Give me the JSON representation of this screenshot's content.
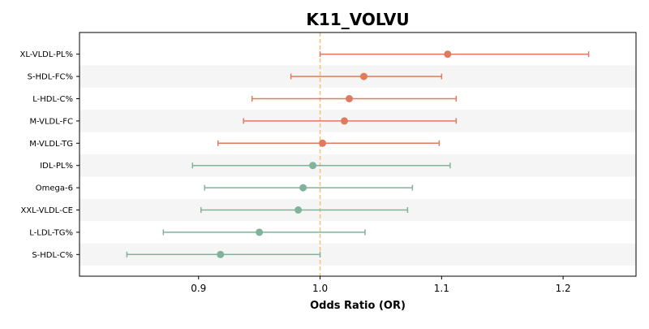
{
  "chart_data": {
    "type": "scatter",
    "subtype": "forest-plot",
    "title": "K11_VOLVU",
    "xlabel": "Odds Ratio (OR)",
    "ylabel": "",
    "xlim": [
      0.802,
      1.26
    ],
    "xticks": [
      0.9,
      1.0,
      1.1,
      1.2
    ],
    "xtick_labels": [
      "0.9",
      "1.0",
      "1.1",
      "1.2"
    ],
    "reference_line": 1.0,
    "grid": false,
    "alternating_row_bands": true,
    "colors": {
      "positive": "#e07a5f",
      "negative": "#81b29a",
      "reference_line": "#f2c078",
      "band": "#f5f5f5",
      "axis": "#000000"
    },
    "rows": [
      {
        "label": "XL-VLDL-PL%",
        "or": 1.105,
        "lower": 1.0,
        "upper": 1.221
      },
      {
        "label": "S-HDL-FC%",
        "or": 1.036,
        "lower": 0.976,
        "upper": 1.1
      },
      {
        "label": "L-HDL-C%",
        "or": 1.024,
        "lower": 0.944,
        "upper": 1.112
      },
      {
        "label": "M-VLDL-FC",
        "or": 1.02,
        "lower": 0.937,
        "upper": 1.112
      },
      {
        "label": "M-VLDL-TG",
        "or": 1.002,
        "lower": 0.916,
        "upper": 1.098
      },
      {
        "label": "IDL-PL%",
        "or": 0.994,
        "lower": 0.895,
        "upper": 1.107
      },
      {
        "label": "Omega-6",
        "or": 0.986,
        "lower": 0.905,
        "upper": 1.076
      },
      {
        "label": "XXL-VLDL-CE",
        "or": 0.982,
        "lower": 0.902,
        "upper": 1.072
      },
      {
        "label": "L-LDL-TG%",
        "or": 0.95,
        "lower": 0.871,
        "upper": 1.037
      },
      {
        "label": "S-HDL-C%",
        "or": 0.918,
        "lower": 0.841,
        "upper": 1.0
      }
    ]
  }
}
